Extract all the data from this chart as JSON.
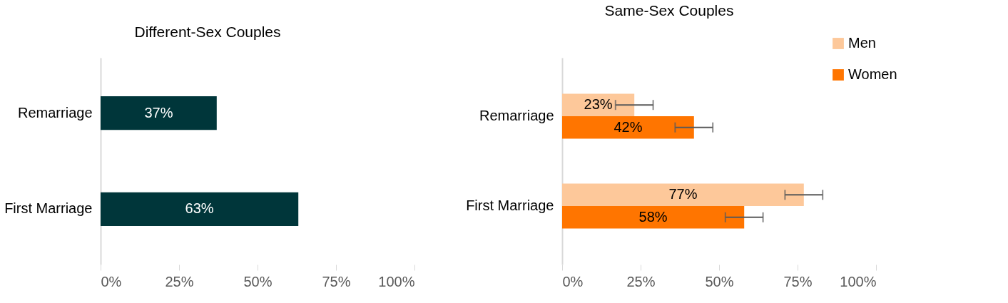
{
  "chart_data": [
    {
      "type": "bar",
      "orientation": "horizontal",
      "title": "Different-Sex Couples",
      "categories": [
        "Remarriage",
        "First Marriage"
      ],
      "values": [
        37,
        63
      ],
      "color": "#00363a",
      "value_labels": [
        "37%",
        "63%"
      ],
      "xlim": [
        0,
        100
      ],
      "xticks": [
        {
          "value": 0,
          "label": "0%"
        },
        {
          "value": 25,
          "label": "25%"
        },
        {
          "value": 50,
          "label": "50%"
        },
        {
          "value": 75,
          "label": "75%"
        },
        {
          "value": 100,
          "label": "100%"
        }
      ]
    },
    {
      "type": "bar",
      "orientation": "horizontal",
      "title": "Same-Sex Couples",
      "categories": [
        "Remarriage",
        "First Marriage"
      ],
      "series": [
        {
          "name": "Men",
          "color": "#fdc89a",
          "values": [
            23,
            77
          ],
          "errors": [
            6,
            6
          ],
          "value_labels": [
            "23%",
            "77%"
          ]
        },
        {
          "name": "Women",
          "color": "#ff7500",
          "values": [
            42,
            58
          ],
          "errors": [
            6,
            6
          ],
          "value_labels": [
            "42%",
            "58%"
          ]
        }
      ],
      "legend": "top right",
      "xlim": [
        0,
        100
      ],
      "xticks": [
        {
          "value": 0,
          "label": "0%"
        },
        {
          "value": 25,
          "label": "25%"
        },
        {
          "value": 50,
          "label": "50%"
        },
        {
          "value": 75,
          "label": "75%"
        },
        {
          "value": 100,
          "label": "100%"
        }
      ]
    }
  ]
}
